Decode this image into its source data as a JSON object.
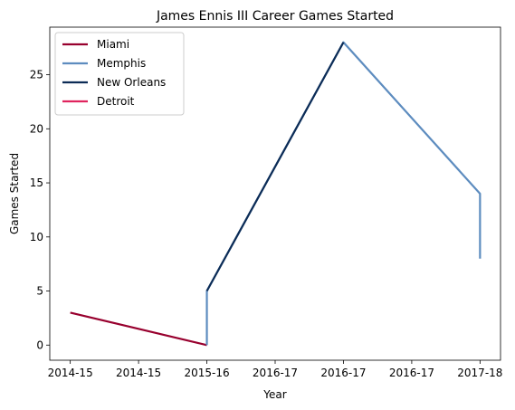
{
  "chart_data": {
    "type": "line",
    "title": "James Ennis III Career Games Started",
    "xlabel": "Year",
    "ylabel": "Games Started",
    "x_tick_labels": [
      "2014-15",
      "2014-15",
      "2015-16",
      "2016-17",
      "2016-17",
      "2016-17",
      "2017-18"
    ],
    "x_range": [
      -0.15,
      3.15
    ],
    "y_ticks": [
      0,
      5,
      10,
      15,
      20,
      25
    ],
    "ylim": [
      -1.4,
      29.4
    ],
    "grid": false,
    "legend_position": "upper-left",
    "series": [
      {
        "name": "Miami",
        "color": "#98002E",
        "x": [
          0,
          1
        ],
        "y": [
          3,
          0
        ]
      },
      {
        "name": "Memphis",
        "color": "#5D8CBF",
        "x": [
          1,
          1,
          2,
          3,
          3
        ],
        "y": [
          0,
          5,
          28,
          14,
          8
        ]
      },
      {
        "name": "New Orleans",
        "color": "#0C2C56",
        "x": [
          1,
          2
        ],
        "y": [
          5,
          28
        ]
      },
      {
        "name": "Detroit",
        "color": "#E0245E",
        "x": [],
        "y": []
      }
    ]
  }
}
